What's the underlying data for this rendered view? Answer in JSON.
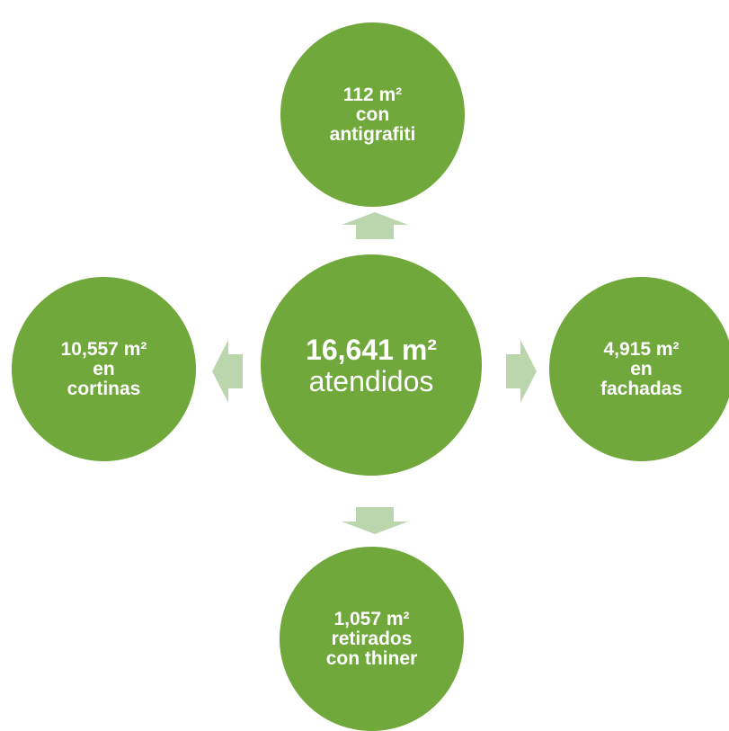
{
  "colors": {
    "circle": "#70a83b",
    "arrow": "#bbd6ad"
  },
  "center": {
    "value": "16,641 m²",
    "label": "atendidos"
  },
  "top": {
    "line1": "112 m²",
    "line2": "con",
    "line3": "antigrafiti"
  },
  "left": {
    "line1": "10,557 m²",
    "line2": "en",
    "line3": "cortinas"
  },
  "right": {
    "line1": "4,915 m²",
    "line2": "en",
    "line3": "fachadas"
  },
  "bottom": {
    "line1": "1,057 m²",
    "line2": "retirados",
    "line3": "con thiner"
  }
}
